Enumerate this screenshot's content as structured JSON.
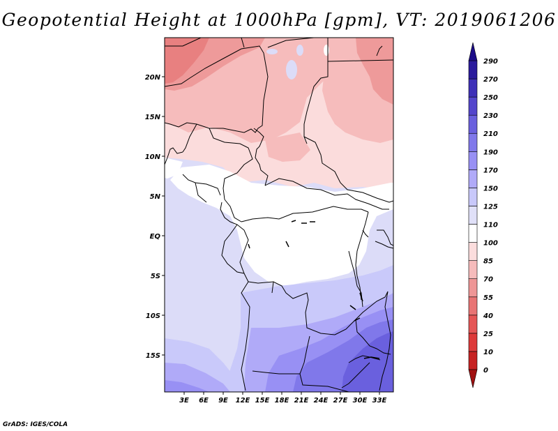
{
  "title": "Geopotential Height at 1000hPa [gpm], VT: 2019061206",
  "footer": "GrADS: IGES/COLA",
  "map": {
    "lat_labels": [
      "20N",
      "15N",
      "10N",
      "5N",
      "EQ",
      "5S",
      "10S",
      "15S"
    ],
    "lon_labels": [
      "3E",
      "6E",
      "9E",
      "12E",
      "15E",
      "18E",
      "21E",
      "24E",
      "27E",
      "30E",
      "33E"
    ]
  },
  "colorbar": {
    "levels": [
      "0",
      "10",
      "25",
      "40",
      "55",
      "70",
      "85",
      "100",
      "110",
      "125",
      "150",
      "170",
      "190",
      "210",
      "230",
      "250",
      "270",
      "290"
    ],
    "colors": [
      "#a01010",
      "#c62222",
      "#dd3a3a",
      "#e55656",
      "#e87474",
      "#ee9696",
      "#f6bbbb",
      "#fbdddd",
      "#ffffff",
      "#e0e0f8",
      "#c8c8fa",
      "#b0aaf8",
      "#9890f4",
      "#8078ea",
      "#6a60de",
      "#5446cc",
      "#3e30b8",
      "#2a1a9c",
      "#1c0c88"
    ]
  }
}
